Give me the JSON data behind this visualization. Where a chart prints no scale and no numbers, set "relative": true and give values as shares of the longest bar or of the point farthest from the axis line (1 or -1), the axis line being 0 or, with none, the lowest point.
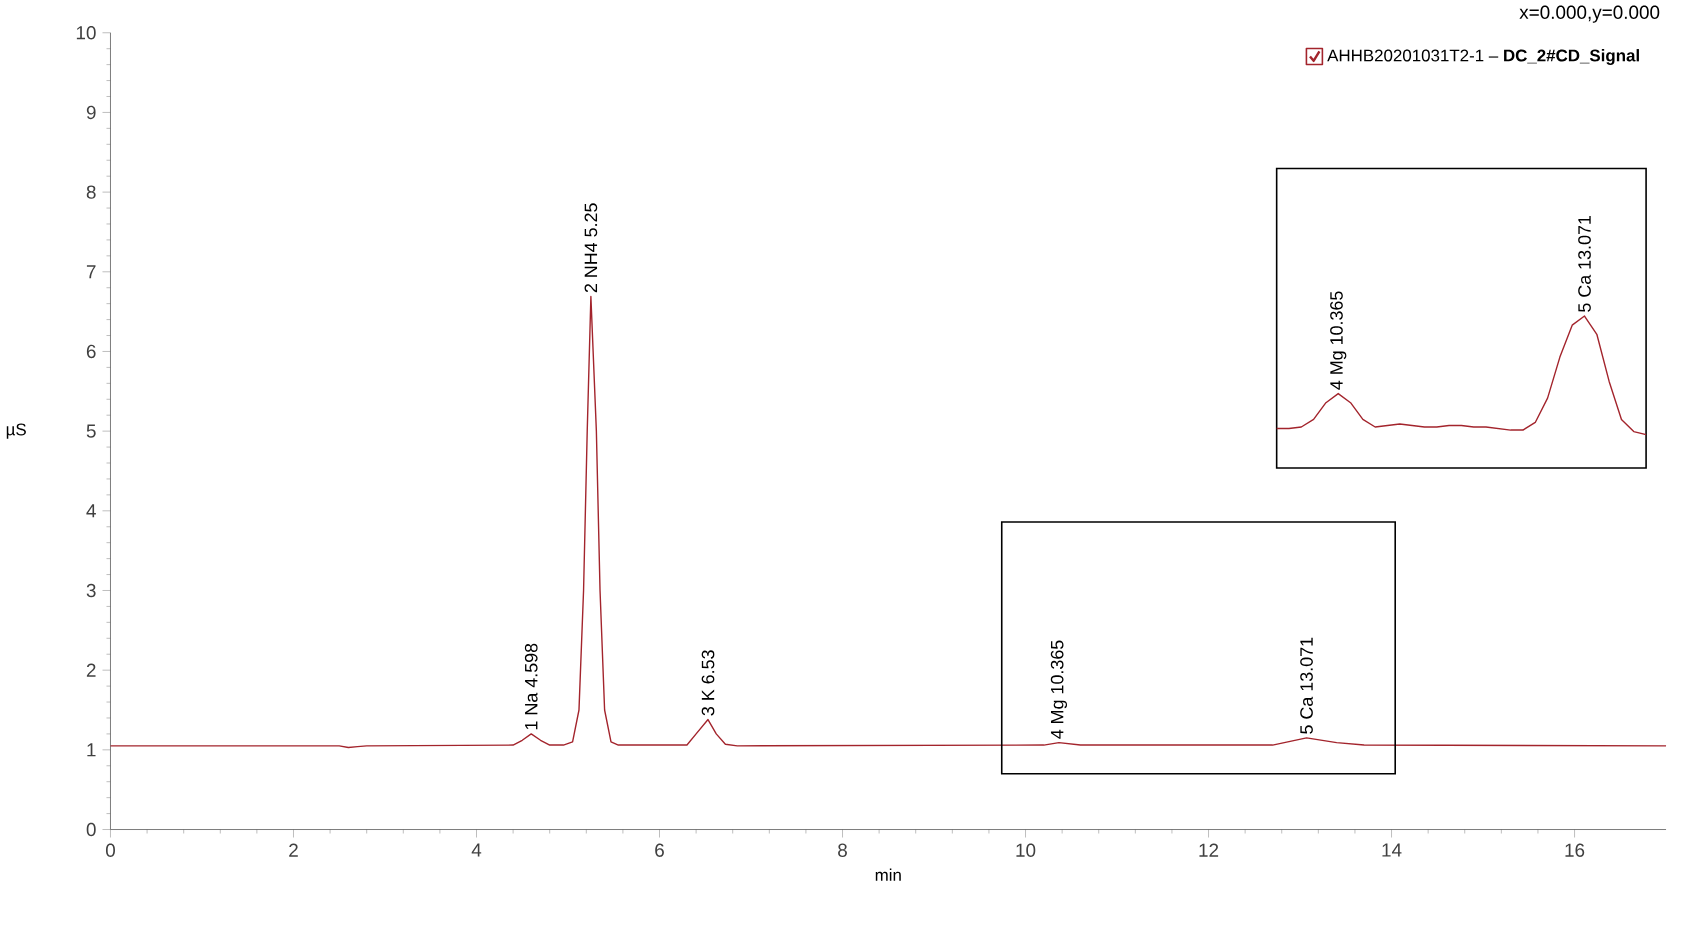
{
  "chart_data": [
    {
      "type": "line",
      "xlabel": "min",
      "ylabel": "µS",
      "xlim": [
        0,
        17
      ],
      "ylim": [
        0,
        10
      ],
      "xticks": [
        0,
        2,
        4,
        6,
        8,
        10,
        12,
        14,
        16
      ],
      "yticks": [
        0,
        1,
        2,
        3,
        4,
        5,
        6,
        7,
        8,
        9,
        10
      ],
      "legend": "top right",
      "grid": false,
      "marker": "none",
      "line_style": "solid",
      "series": [
        {
          "name": "AHHB20201031T2-1 – **DC_2#CD_Signal**",
          "color": "#a3242c",
          "x": [
            0,
            2.5,
            2.6,
            2.7,
            2.8,
            4.4,
            4.5,
            4.598,
            4.7,
            4.8,
            4.95,
            5.05,
            5.12,
            5.17,
            5.21,
            5.25,
            5.31,
            5.35,
            5.4,
            5.47,
            5.55,
            6.3,
            6.4,
            6.53,
            6.62,
            6.72,
            6.85,
            10.2,
            10.365,
            10.6,
            12.7,
            13.071,
            13.4,
            13.7,
            17
          ],
          "values": [
            1.05,
            1.05,
            1.03,
            1.04,
            1.05,
            1.06,
            1.12,
            1.2,
            1.12,
            1.06,
            1.06,
            1.1,
            1.5,
            3.0,
            5.0,
            6.69,
            5.0,
            3.0,
            1.5,
            1.1,
            1.06,
            1.06,
            1.2,
            1.38,
            1.2,
            1.07,
            1.05,
            1.06,
            1.09,
            1.06,
            1.06,
            1.15,
            1.09,
            1.06,
            1.05
          ]
        }
      ],
      "annotations": [
        {
          "text": "1 Na 4.598",
          "x": 4.598,
          "y": 1.2
        },
        {
          "text": "2 NH4 5.25",
          "x": 5.25,
          "y": 6.69
        },
        {
          "text": "3 K 6.53",
          "x": 6.53,
          "y": 1.38
        },
        {
          "text": "4 Mg 10.365",
          "x": 10.365,
          "y": 1.09
        },
        {
          "text": "5 Ca 13.071",
          "x": 13.071,
          "y": 1.15
        },
        "x=0.000,y=0.000"
      ]
    },
    {
      "type": "line",
      "relative": true,
      "tick_labels": false,
      "categories": [
        null,
        null,
        null,
        null,
        null,
        null,
        null,
        null,
        null,
        null,
        null,
        null,
        null,
        null,
        null,
        null,
        null,
        null,
        null,
        null,
        null,
        null,
        null,
        null,
        null,
        null,
        null,
        null,
        null,
        null,
        null
      ],
      "series": [
        {
          "color": "#a3242c",
          "values": [
            0.26,
            0.26,
            0.27,
            0.32,
            0.43,
            0.49,
            0.43,
            0.32,
            0.27,
            0.28,
            0.29,
            0.28,
            0.27,
            0.27,
            0.28,
            0.28,
            0.27,
            0.27,
            0.26,
            0.25,
            0.25,
            0.3,
            0.46,
            0.73,
            0.94,
            1,
            0.88,
            0.57,
            0.32,
            0.24,
            0.22
          ]
        }
      ],
      "annotations": [
        {
          "text": "4 Mg 10.365",
          "y": 0.49
        },
        {
          "text": "5 Ca 13.071",
          "y": 1
        }
      ]
    }
  ]
}
